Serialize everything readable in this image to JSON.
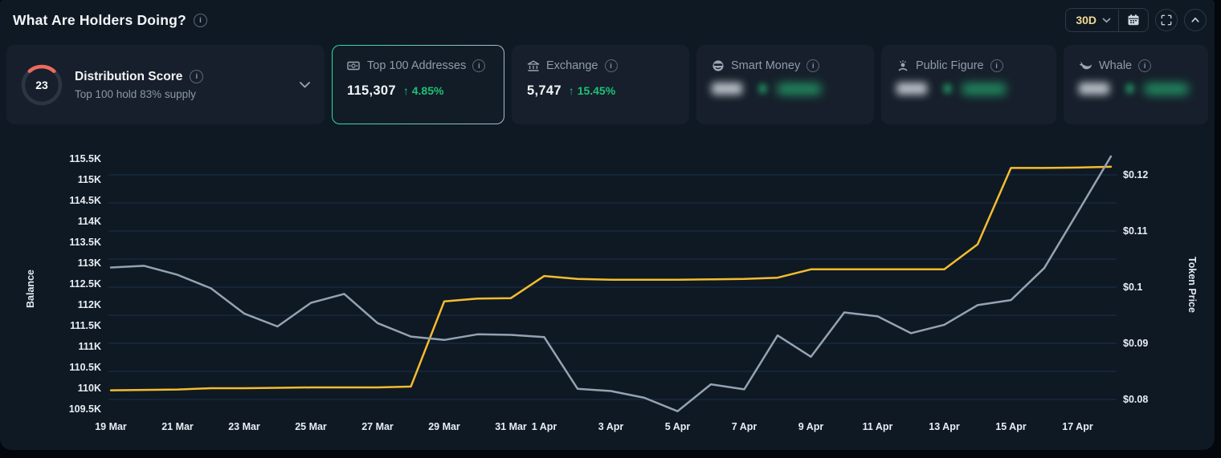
{
  "header": {
    "title": "What Are Holders Doing?",
    "range_value": "30D"
  },
  "glyphs": {
    "info": "i"
  },
  "cards": {
    "distribution": {
      "score": "23",
      "score_value": 23,
      "score_max": 100,
      "title": "Distribution Score",
      "subtitle": "Top 100 hold 83% supply",
      "arc_color": "#ee6a5f"
    },
    "stats": [
      {
        "title": "Top 100 Addresses",
        "value": "115,307",
        "arrow": "↑",
        "change": "4.85%",
        "selected": true,
        "masked": false,
        "icon": "banknote-icon"
      },
      {
        "title": "Exchange",
        "value": "5,747",
        "arrow": "↑",
        "change": "15.45%",
        "selected": false,
        "masked": false,
        "icon": "bank-icon"
      },
      {
        "title": "Smart Money",
        "masked": true,
        "icon": "smart-money-icon"
      },
      {
        "title": "Public Figure",
        "masked": true,
        "icon": "public-figure-icon"
      },
      {
        "title": "Whale",
        "masked": true,
        "icon": "whale-icon"
      }
    ]
  },
  "chart_data": {
    "type": "line",
    "x": [
      "19 Mar",
      "20 Mar",
      "21 Mar",
      "22 Mar",
      "23 Mar",
      "24 Mar",
      "25 Mar",
      "26 Mar",
      "27 Mar",
      "28 Mar",
      "29 Mar",
      "30 Mar",
      "31 Mar",
      "1 Apr",
      "2 Apr",
      "3 Apr",
      "4 Apr",
      "5 Apr",
      "6 Apr",
      "7 Apr",
      "8 Apr",
      "9 Apr",
      "10 Apr",
      "11 Apr",
      "12 Apr",
      "13 Apr",
      "14 Apr",
      "15 Apr",
      "16 Apr",
      "17 Apr",
      "18 Apr"
    ],
    "x_tick_labels": [
      "19 Mar",
      "21 Mar",
      "23 Mar",
      "25 Mar",
      "27 Mar",
      "29 Mar",
      "31 Mar",
      "1 Apr",
      "3 Apr",
      "5 Apr",
      "7 Apr",
      "9 Apr",
      "11 Apr",
      "13 Apr",
      "15 Apr",
      "17 Apr"
    ],
    "series": [
      {
        "name": "Balance",
        "axis": "left",
        "color": "#f5bc2f",
        "values": [
          109.95,
          109.96,
          109.97,
          110.0,
          110.0,
          110.01,
          110.02,
          110.02,
          110.02,
          110.04,
          112.08,
          112.15,
          112.16,
          112.69,
          112.62,
          112.6,
          112.6,
          112.6,
          112.61,
          112.62,
          112.65,
          112.85,
          112.85,
          112.85,
          112.85,
          112.85,
          113.45,
          115.28,
          115.28,
          115.29,
          115.31
        ]
      },
      {
        "name": "Token Price",
        "axis": "right",
        "color": "#94a3b2",
        "values": [
          0.1035,
          0.1038,
          0.1022,
          0.0998,
          0.0953,
          0.093,
          0.0972,
          0.0988,
          0.0936,
          0.0912,
          0.0906,
          0.0916,
          0.0915,
          0.0911,
          0.0819,
          0.0815,
          0.0803,
          0.0779,
          0.0827,
          0.0818,
          0.0914,
          0.0876,
          0.0955,
          0.0948,
          0.0918,
          0.0933,
          0.0968,
          0.0977,
          0.1034,
          0.1133,
          0.1233
        ]
      }
    ],
    "left_axis": {
      "label": "Balance",
      "min": 109.5,
      "max": 115.5,
      "ticks": [
        "115.5K",
        "115K",
        "114.5K",
        "114K",
        "113.5K",
        "113K",
        "112.5K",
        "112K",
        "111.5K",
        "111K",
        "110.5K",
        "110K",
        "109.5K"
      ]
    },
    "right_axis": {
      "label": "Token Price",
      "min": 0.08,
      "max": 0.12,
      "ticks": [
        "$0.12",
        "$0.11",
        "$0.1",
        "$0.09",
        "$0.08"
      ]
    },
    "grid": {
      "orientation": "horizontal",
      "step_price": 0.005,
      "color": "#1e3a5c"
    }
  }
}
